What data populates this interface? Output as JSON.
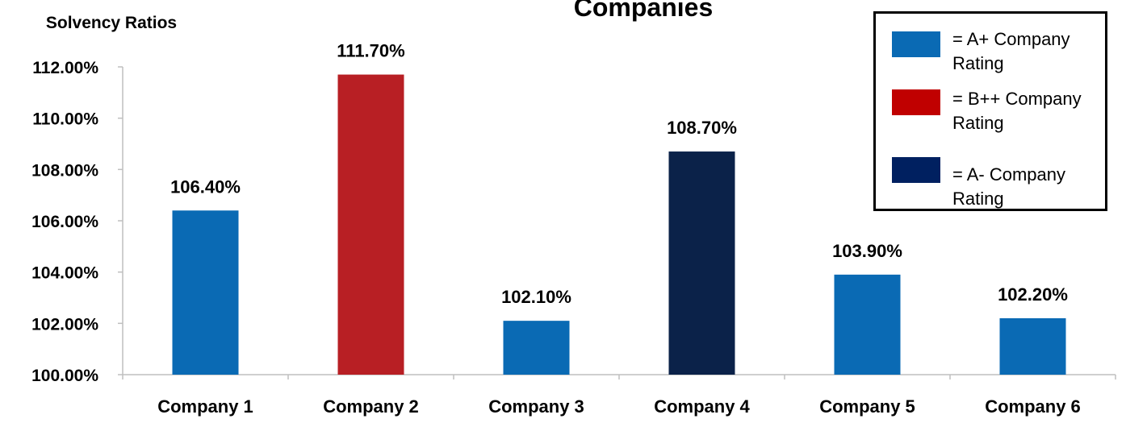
{
  "colors": {
    "a_plus": "#0a6ab4",
    "b_plus_plus": "#b81f24",
    "a_minus": "#0b2249",
    "axis": "#bfbfbf"
  },
  "legend": {
    "items": [
      {
        "label": "= A+ Company Rating",
        "color": "#0a6ab4"
      },
      {
        "label": "= B++ Company Rating",
        "color": "#c00000"
      },
      {
        "label": "= A- Company Rating",
        "color": "#002060"
      }
    ]
  },
  "chart_data": {
    "type": "bar",
    "title": "Companies",
    "ylabel": "Solvency Ratios",
    "xlabel": "",
    "categories": [
      "Company 1",
      "Company 2",
      "Company 3",
      "Company 4",
      "Company 5",
      "Company 6"
    ],
    "values": [
      106.4,
      111.7,
      102.1,
      108.7,
      103.9,
      102.2
    ],
    "value_labels": [
      "106.40%",
      "111.70%",
      "102.10%",
      "108.70%",
      "103.90%",
      "102.20%"
    ],
    "ratings": [
      "A+",
      "B++",
      "A+",
      "A-",
      "A+",
      "A+"
    ],
    "ylim": [
      100,
      112
    ],
    "yticks": [
      100,
      102,
      104,
      106,
      108,
      110,
      112
    ],
    "ytick_labels": [
      "100.00%",
      "102.00%",
      "104.00%",
      "106.00%",
      "108.00%",
      "110.00%",
      "112.00%"
    ],
    "grid": false,
    "legend_position": "top-right"
  }
}
